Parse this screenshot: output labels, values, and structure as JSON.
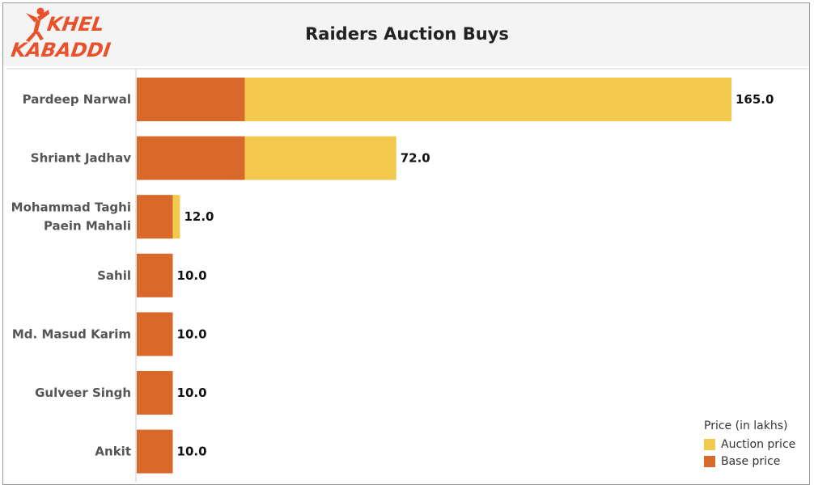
{
  "title": "Raiders Auction Buys",
  "logo": {
    "line1": "KHEL",
    "line2": "KABADDI"
  },
  "colors": {
    "auction": "#f2c94c",
    "base": "#d8692b",
    "logo_orange": "#e8512a"
  },
  "legend": {
    "title": "Price (in lakhs)",
    "items": [
      {
        "label": "Auction price",
        "color": "#f2c94c"
      },
      {
        "label": "Base price",
        "color": "#d8692b"
      }
    ]
  },
  "chart_data": {
    "type": "bar",
    "orientation": "horizontal",
    "stacked": true,
    "title": "Raiders Auction Buys",
    "xlabel": "",
    "ylabel": "",
    "xlim": [
      0,
      170
    ],
    "grid": false,
    "legend_position": "bottom-right",
    "categories": [
      [
        "Pardeep Narwal"
      ],
      [
        "Shriant Jadhav"
      ],
      [
        "Mohammad Taghi",
        "Paein Mahali"
      ],
      [
        "Sahil"
      ],
      [
        "Md. Masud Karim"
      ],
      [
        "Gulveer Singh"
      ],
      [
        "Ankit"
      ]
    ],
    "series": [
      {
        "name": "Base price",
        "values": [
          30,
          30,
          10,
          10,
          10,
          10,
          10
        ]
      },
      {
        "name": "Auction price",
        "values": [
          135,
          42,
          2,
          0,
          0,
          0,
          0
        ]
      }
    ],
    "totals": [
      "165.0",
      "72.0",
      "12.0",
      "10.0",
      "10.0",
      "10.0",
      "10.0"
    ]
  }
}
